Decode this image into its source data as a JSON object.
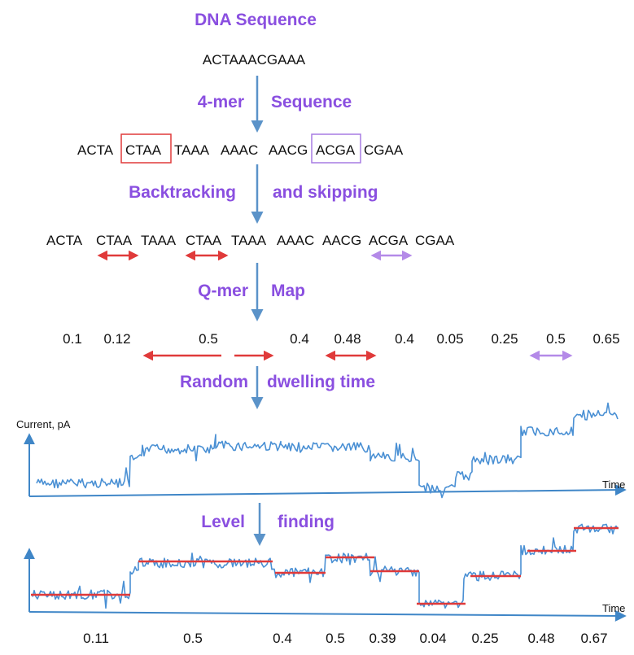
{
  "colors": {
    "accent_purple": "#8a4fe0",
    "arrow_blue": "#5b93c9",
    "signal_blue": "#4a90d4",
    "level_red": "#e03a3a",
    "box_red": "#e03a3a",
    "box_purple": "#a77be3",
    "text": "#111111"
  },
  "labels": {
    "dna_title": "DNA Sequence",
    "dna_sequence": "ACTAAACGAAA",
    "kmer_left": "4-mer",
    "kmer_right": "Sequence",
    "backtrack_left": "Backtracking",
    "backtrack_right": "and skipping",
    "qmer_left": "Q-mer",
    "qmer_right": "Map",
    "dwell_left": "Random",
    "dwell_right": "dwelling time",
    "level_left": "Level",
    "level_right": "finding"
  },
  "kmer_row": {
    "items": [
      "ACTA",
      "CTAA",
      "TAAA",
      "AAAC",
      "AACG",
      "ACGA",
      "CGAA"
    ],
    "boxed_red_index": 1,
    "boxed_purple_index": 5
  },
  "backtrack_row": {
    "items": [
      "ACTA",
      "CTAA",
      "TAAA",
      "CTAA",
      "TAAA",
      "AAAC",
      "AACG",
      "ACGA",
      "CGAA"
    ]
  },
  "qmer_values": [
    "0.1",
    "0.12",
    "0.5",
    "0.4",
    "0.48",
    "0.4",
    "0.05",
    "0.25",
    "0.5",
    "0.65"
  ],
  "signal_chart": {
    "y_label": "Current, pA",
    "x_label": "Time"
  },
  "level_chart": {
    "x_label": "Time"
  },
  "level_values": [
    "0.11",
    "0.5",
    "0.4",
    "0.5",
    "0.39",
    "0.04",
    "0.25",
    "0.48",
    "0.67"
  ]
}
